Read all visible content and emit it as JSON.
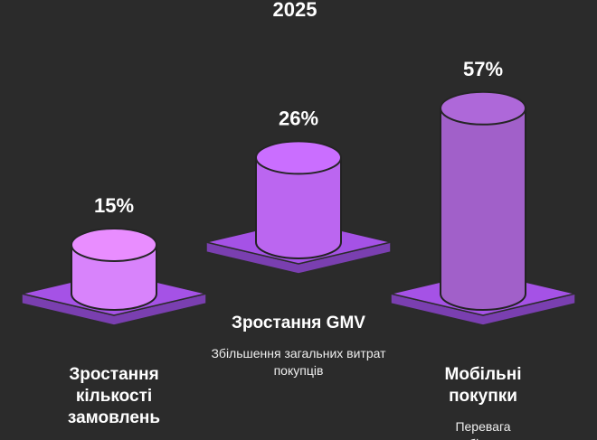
{
  "chart_data": {
    "type": "bar",
    "title": "2025",
    "categories": [
      "Зростання кількості замовлень",
      "Зростання GMV",
      "Мобільні покупки"
    ],
    "descriptions": [
      null,
      "Збільшення загальних витрат покупців",
      "Перевага мобільних"
    ],
    "values": [
      15,
      26,
      57
    ],
    "value_labels": [
      "15%",
      "26%",
      "57%"
    ],
    "colors": [
      "#d883fb",
      "#bb66f0",
      "#a160c9"
    ]
  }
}
